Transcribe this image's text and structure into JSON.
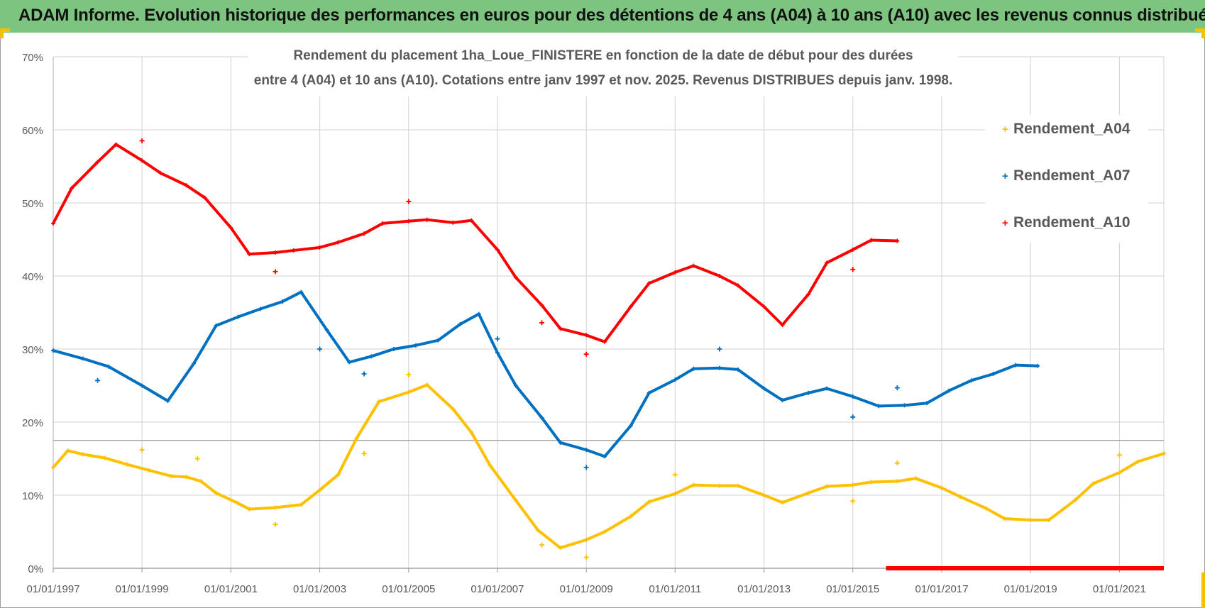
{
  "header": {
    "title": "ADAM Informe. Evolution historique des performances en euros pour des détentions de 4 ans (A04) à 10 ans (A10) avec les revenus connus distribués"
  },
  "colors": {
    "header_bg": "#7cc47f",
    "corner": "#f2c200",
    "A04": "#ffc000",
    "A07": "#0070c0",
    "A10": "#ff0000",
    "grid": "#d9d9d9",
    "text": "#595959"
  },
  "chart_data": {
    "type": "scatter",
    "title_line1": "Rendement du placement 1ha_Loue_FINISTERE en fonction de la date de début pour des durées",
    "title_line2": "entre 4 (A04) et 10 ans (A10). Cotations entre janv 1997 et nov. 2025. Revenus DISTRIBUES depuis janv. 1998.",
    "xlabel": "",
    "ylabel": "",
    "x_tick_labels": [
      "01/01/1997",
      "01/01/1999",
      "01/01/2001",
      "01/01/2003",
      "01/01/2005",
      "01/01/2007",
      "01/01/2009",
      "01/01/2011",
      "01/01/2013",
      "01/01/2015",
      "01/01/2017",
      "01/01/2019",
      "01/01/2021"
    ],
    "xlim": [
      "01/01/1997",
      "01/01/2022"
    ],
    "y_tick_labels": [
      "0%",
      "10%",
      "20%",
      "30%",
      "40%",
      "50%",
      "60%",
      "70%"
    ],
    "ylim": [
      0,
      70
    ],
    "grid": true,
    "legend_position": "right",
    "reference_line_y": 17.5,
    "series": [
      {
        "name": "Rendement_A04",
        "color": "#ffc000",
        "points": [
          [
            "1997-01-01",
            13.8
          ],
          [
            "1997-05-01",
            16.1
          ],
          [
            "1997-09-01",
            15.6
          ],
          [
            "1998-03-01",
            15.1
          ],
          [
            "1998-09-01",
            14.2
          ],
          [
            "1999-03-01",
            13.4
          ],
          [
            "1999-09-01",
            12.6
          ],
          [
            "2000-01-01",
            12.5
          ],
          [
            "2000-05-01",
            11.9
          ],
          [
            "2000-09-01",
            10.3
          ],
          [
            "2001-03-01",
            8.9
          ],
          [
            "2001-06-01",
            8.1
          ],
          [
            "2002-01-01",
            8.3
          ],
          [
            "2002-08-01",
            8.7
          ],
          [
            "2003-01-01",
            10.7
          ],
          [
            "2003-06-01",
            12.8
          ],
          [
            "2003-11-01",
            17.8
          ],
          [
            "2004-05-01",
            22.8
          ],
          [
            "2005-01-01",
            24.1
          ],
          [
            "2005-06-01",
            25.1
          ],
          [
            "2006-01-01",
            21.8
          ],
          [
            "2006-06-01",
            18.6
          ],
          [
            "2006-11-01",
            14.1
          ],
          [
            "2007-06-01",
            9.3
          ],
          [
            "2007-12-01",
            5.2
          ],
          [
            "2008-06-01",
            2.8
          ],
          [
            "2009-01-01",
            3.9
          ],
          [
            "2009-06-01",
            5.0
          ],
          [
            "2010-01-01",
            7.1
          ],
          [
            "2010-06-01",
            9.1
          ],
          [
            "2011-01-01",
            10.2
          ],
          [
            "2011-06-01",
            11.4
          ],
          [
            "2012-01-01",
            11.3
          ],
          [
            "2012-06-01",
            11.3
          ],
          [
            "2013-01-01",
            10.0
          ],
          [
            "2013-06-01",
            9.0
          ],
          [
            "2014-01-01",
            10.3
          ],
          [
            "2014-06-01",
            11.2
          ],
          [
            "2015-01-01",
            11.4
          ],
          [
            "2015-06-01",
            11.8
          ],
          [
            "2016-01-01",
            11.9
          ],
          [
            "2016-06-01",
            12.3
          ],
          [
            "2017-01-01",
            11.0
          ],
          [
            "2017-06-01",
            9.8
          ],
          [
            "2018-01-01",
            8.2
          ],
          [
            "2018-06-01",
            6.8
          ],
          [
            "2019-01-01",
            6.6
          ],
          [
            "2019-06-01",
            6.6
          ],
          [
            "2020-01-01",
            9.3
          ],
          [
            "2020-06-01",
            11.6
          ],
          [
            "2021-01-01",
            13.1
          ],
          [
            "2021-06-01",
            14.6
          ],
          [
            "2022-01-01",
            15.7
          ]
        ],
        "outliers": [
          [
            "1999-01-01",
            16.2
          ],
          [
            "2000-04-01",
            15.0
          ],
          [
            "2002-01-01",
            6.0
          ],
          [
            "2004-01-01",
            15.7
          ],
          [
            "2005-01-01",
            26.5
          ],
          [
            "2008-01-01",
            3.2
          ],
          [
            "2009-01-01",
            1.5
          ],
          [
            "2011-01-01",
            12.8
          ],
          [
            "2015-01-01",
            9.2
          ],
          [
            "2016-01-01",
            14.4
          ],
          [
            "2021-01-01",
            15.5
          ]
        ]
      },
      {
        "name": "Rendement_A07",
        "color": "#0070c0",
        "points": [
          [
            "1997-01-01",
            29.8
          ],
          [
            "1997-09-01",
            28.7
          ],
          [
            "1998-04-01",
            27.6
          ],
          [
            "1999-01-01",
            25.0
          ],
          [
            "1999-08-01",
            22.9
          ],
          [
            "2000-03-01",
            28.0
          ],
          [
            "2000-09-01",
            33.2
          ],
          [
            "2001-03-01",
            34.4
          ],
          [
            "2001-09-01",
            35.5
          ],
          [
            "2002-03-01",
            36.5
          ],
          [
            "2002-08-01",
            37.8
          ],
          [
            "2003-03-01",
            32.6
          ],
          [
            "2003-09-01",
            28.2
          ],
          [
            "2004-03-01",
            29.0
          ],
          [
            "2004-09-01",
            30.0
          ],
          [
            "2005-03-01",
            30.5
          ],
          [
            "2005-09-01",
            31.2
          ],
          [
            "2006-03-01",
            33.4
          ],
          [
            "2006-08-01",
            34.8
          ],
          [
            "2007-01-01",
            29.5
          ],
          [
            "2007-06-01",
            25.0
          ],
          [
            "2008-01-01",
            20.6
          ],
          [
            "2008-06-01",
            17.2
          ],
          [
            "2009-01-01",
            16.2
          ],
          [
            "2009-06-01",
            15.3
          ],
          [
            "2010-01-01",
            19.5
          ],
          [
            "2010-06-01",
            24.0
          ],
          [
            "2011-01-01",
            25.8
          ],
          [
            "2011-06-01",
            27.3
          ],
          [
            "2012-01-01",
            27.4
          ],
          [
            "2012-06-01",
            27.2
          ],
          [
            "2013-01-01",
            24.6
          ],
          [
            "2013-06-01",
            23.0
          ],
          [
            "2014-01-01",
            24.0
          ],
          [
            "2014-06-01",
            24.6
          ],
          [
            "2015-01-01",
            23.5
          ],
          [
            "2015-08-01",
            22.2
          ],
          [
            "2016-03-01",
            22.3
          ],
          [
            "2016-09-01",
            22.6
          ],
          [
            "2017-03-01",
            24.3
          ],
          [
            "2017-09-01",
            25.7
          ],
          [
            "2018-03-01",
            26.6
          ],
          [
            "2018-09-01",
            27.8
          ],
          [
            "2019-03-01",
            27.7
          ]
        ],
        "outliers": [
          [
            "1998-01-01",
            25.7
          ],
          [
            "2003-01-01",
            30.0
          ],
          [
            "2004-01-01",
            26.6
          ],
          [
            "2007-01-01",
            31.4
          ],
          [
            "2009-01-01",
            13.8
          ],
          [
            "2012-01-01",
            30.0
          ],
          [
            "2015-01-01",
            20.7
          ],
          [
            "2016-01-01",
            24.7
          ]
        ]
      },
      {
        "name": "Rendement_A10",
        "color": "#ff0000",
        "points": [
          [
            "1997-01-01",
            47.2
          ],
          [
            "1997-06-01",
            52.0
          ],
          [
            "1998-01-01",
            55.6
          ],
          [
            "1998-06-01",
            58.0
          ],
          [
            "1999-01-01",
            55.8
          ],
          [
            "1999-06-01",
            54.1
          ],
          [
            "2000-01-01",
            52.4
          ],
          [
            "2000-06-01",
            50.7
          ],
          [
            "2001-01-01",
            46.6
          ],
          [
            "2001-06-01",
            43.0
          ],
          [
            "2002-01-01",
            43.2
          ],
          [
            "2002-06-01",
            43.5
          ],
          [
            "2003-01-01",
            43.9
          ],
          [
            "2003-06-01",
            44.6
          ],
          [
            "2004-01-01",
            45.8
          ],
          [
            "2004-06-01",
            47.2
          ],
          [
            "2005-01-01",
            47.5
          ],
          [
            "2005-06-01",
            47.7
          ],
          [
            "2006-01-01",
            47.3
          ],
          [
            "2006-06-01",
            47.6
          ],
          [
            "2007-01-01",
            43.6
          ],
          [
            "2007-06-01",
            39.8
          ],
          [
            "2008-01-01",
            36.0
          ],
          [
            "2008-06-01",
            32.8
          ],
          [
            "2009-01-01",
            31.9
          ],
          [
            "2009-06-01",
            31.0
          ],
          [
            "2010-01-01",
            35.8
          ],
          [
            "2010-06-01",
            39.0
          ],
          [
            "2011-01-01",
            40.5
          ],
          [
            "2011-06-01",
            41.4
          ],
          [
            "2012-01-01",
            40.0
          ],
          [
            "2012-06-01",
            38.7
          ],
          [
            "2013-01-01",
            35.8
          ],
          [
            "2013-06-01",
            33.3
          ],
          [
            "2014-01-01",
            37.5
          ],
          [
            "2014-06-01",
            41.8
          ],
          [
            "2015-01-01",
            43.6
          ],
          [
            "2015-06-01",
            44.9
          ],
          [
            "2016-01-01",
            44.8
          ]
        ],
        "outliers": [
          [
            "1999-01-01",
            58.5
          ],
          [
            "2002-01-01",
            40.6
          ],
          [
            "2005-01-01",
            50.2
          ],
          [
            "2008-01-01",
            33.6
          ],
          [
            "2009-01-01",
            29.3
          ],
          [
            "2015-01-01",
            40.9
          ]
        ],
        "zero_segment": [
          "2015-10-01",
          "2022-01-01"
        ]
      }
    ]
  }
}
